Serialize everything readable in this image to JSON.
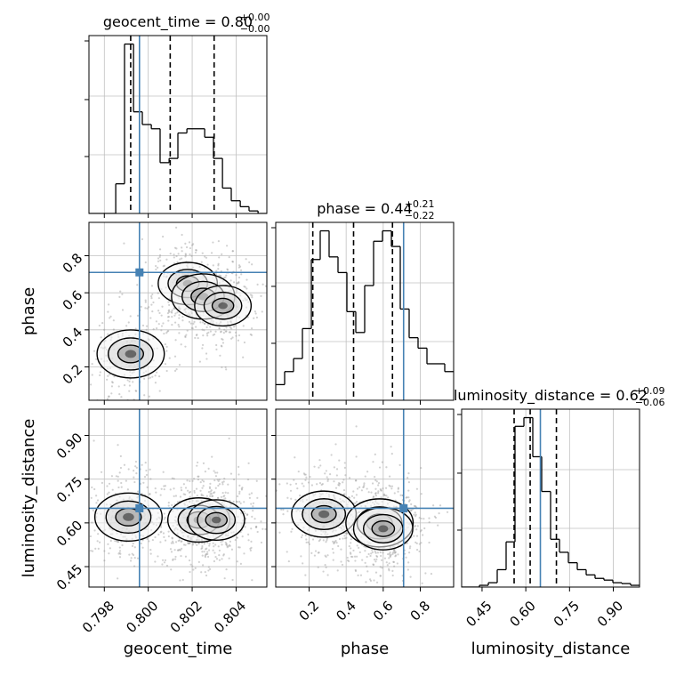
{
  "colors": {
    "truth": "#4682b4",
    "hist": "#000000",
    "grid": "#c0c0c0",
    "scatter": "#9a9a9a"
  },
  "chart_data": [
    {
      "type": "corner",
      "parameters": [
        "geocent_time",
        "phase",
        "luminosity_distance"
      ],
      "ranges": {
        "geocent_time": [
          0.7973,
          0.8054
        ],
        "phase": [
          0.02,
          0.98
        ],
        "luminosity_distance": [
          0.38,
          0.99
        ]
      },
      "truths": {
        "geocent_time": 0.7996,
        "phase": 0.71,
        "luminosity_distance": 0.65
      },
      "ticks": {
        "geocent_time": [
          "0.798",
          "0.800",
          "0.802",
          "0.804"
        ],
        "phase": [
          "0.2",
          "0.4",
          "0.6",
          "0.8"
        ],
        "luminosity_distance": [
          "0.45",
          "0.60",
          "0.75",
          "0.90"
        ]
      },
      "grid": true
    },
    {
      "type": "bar",
      "subplot": "1d-histogram geocent_time",
      "title": {
        "text": "geocent_time = 0.80",
        "sup": "+0.00",
        "sub": "−0.00"
      },
      "bin_edges": [
        0.7973,
        0.79771,
        0.79811,
        0.79852,
        0.79892,
        0.79933,
        0.79973,
        0.80014,
        0.80054,
        0.80095,
        0.80135,
        0.80176,
        0.80216,
        0.80257,
        0.80297,
        0.80338,
        0.80378,
        0.80419,
        0.80459,
        0.805,
        0.8054
      ],
      "values": [
        0,
        0,
        0,
        35,
        200,
        120,
        105,
        100,
        60,
        65,
        95,
        100,
        100,
        90,
        65,
        30,
        15,
        8,
        3,
        0
      ],
      "quantiles": [
        0.7992,
        0.801,
        0.803
      ]
    },
    {
      "type": "bar",
      "subplot": "1d-histogram phase",
      "title": {
        "text": "phase = 0.44",
        "sup": "+0.21",
        "sub": "−0.22"
      },
      "bin_edges": [
        0.02,
        0.068,
        0.116,
        0.164,
        0.212,
        0.26,
        0.308,
        0.356,
        0.404,
        0.452,
        0.5,
        0.548,
        0.596,
        0.644,
        0.692,
        0.74,
        0.788,
        0.836,
        0.884,
        0.932,
        0.98
      ],
      "values": [
        12,
        22,
        32,
        55,
        108,
        130,
        110,
        98,
        68,
        52,
        88,
        122,
        130,
        118,
        70,
        48,
        40,
        28,
        28,
        22
      ],
      "quantiles": [
        0.22,
        0.44,
        0.65
      ]
    },
    {
      "type": "bar",
      "subplot": "1d-histogram luminosity_distance",
      "title": {
        "text": "luminosity_distance = 0.62",
        "sup": "+0.09",
        "sub": "−0.06"
      },
      "bin_edges": [
        0.38,
        0.4105,
        0.441,
        0.4715,
        0.502,
        0.5325,
        0.563,
        0.5935,
        0.624,
        0.6545,
        0.685,
        0.7155,
        0.746,
        0.7765,
        0.807,
        0.8375,
        0.868,
        0.8985,
        0.929,
        0.9595,
        0.99
      ],
      "values": [
        0,
        0,
        2,
        5,
        20,
        52,
        185,
        195,
        150,
        110,
        55,
        40,
        28,
        20,
        14,
        10,
        8,
        5,
        4,
        2
      ],
      "quantiles": [
        0.56,
        0.615,
        0.705
      ]
    },
    {
      "type": "heatmap",
      "subplot": "2d phase vs geocent_time",
      "x": "geocent_time",
      "y": "phase",
      "density_peaks": [
        {
          "x": 0.7992,
          "y": 0.27,
          "weight": 1.0
        },
        {
          "x": 0.8018,
          "y": 0.65,
          "weight": 0.7
        },
        {
          "x": 0.8025,
          "y": 0.58,
          "weight": 0.85
        },
        {
          "x": 0.8034,
          "y": 0.53,
          "weight": 0.6
        }
      ]
    },
    {
      "type": "heatmap",
      "subplot": "2d luminosity_distance vs geocent_time",
      "x": "geocent_time",
      "y": "luminosity_distance",
      "density_peaks": [
        {
          "x": 0.7991,
          "y": 0.62,
          "weight": 1.0
        },
        {
          "x": 0.8023,
          "y": 0.61,
          "weight": 0.8
        },
        {
          "x": 0.8031,
          "y": 0.61,
          "weight": 0.6
        }
      ]
    },
    {
      "type": "heatmap",
      "subplot": "2d luminosity_distance vs phase",
      "x": "phase",
      "y": "luminosity_distance",
      "density_peaks": [
        {
          "x": 0.28,
          "y": 0.63,
          "weight": 0.9
        },
        {
          "x": 0.58,
          "y": 0.6,
          "weight": 1.0
        },
        {
          "x": 0.6,
          "y": 0.58,
          "weight": 0.7
        }
      ]
    }
  ]
}
